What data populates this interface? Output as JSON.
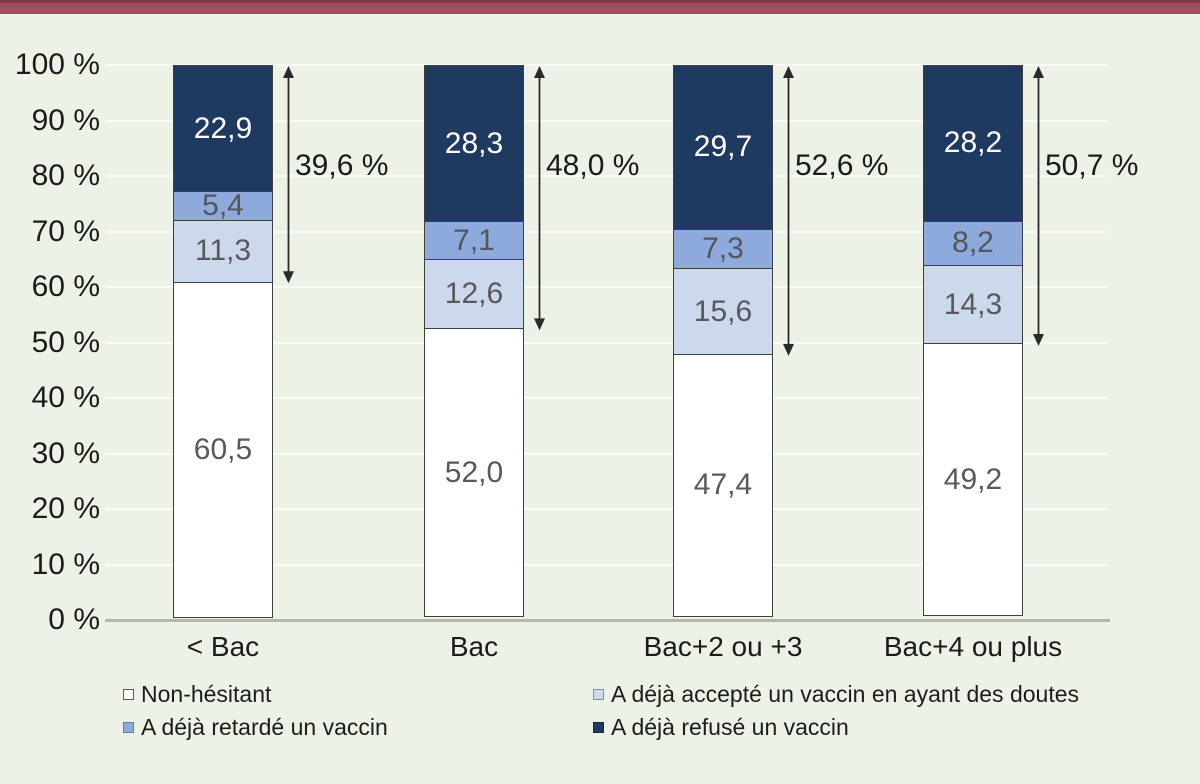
{
  "page": {
    "background_color": "#edf2e6",
    "accent_bar_color": "#9d4f5e",
    "accent_bar_edge_color": "#7e3a48"
  },
  "chart_data": {
    "type": "bar",
    "subtype": "stacked-percentage-column",
    "title": "",
    "xlabel": "",
    "ylabel": "",
    "ylim": [
      0,
      100
    ],
    "grid": true,
    "legend_position": "bottom",
    "categories": [
      "< Bac",
      "Bac",
      "Bac+2 ou +3",
      "Bac+4 ou plus"
    ],
    "y_ticks": [
      "0 %",
      "10 %",
      "20 %",
      "30 %",
      "40 %",
      "50 %",
      "60 %",
      "70 %",
      "80 %",
      "90 %",
      "100 %"
    ],
    "series": [
      {
        "name": "Non-hésitant",
        "color": "#ffffff",
        "label_color": "#595959",
        "values": [
          60.5,
          52.0,
          47.4,
          49.2
        ],
        "labels": [
          "60,5",
          "52,0",
          "47,4",
          "49,2"
        ]
      },
      {
        "name": "A déjà accepté un vaccin en ayant des doutes",
        "color": "#ccd8ec",
        "label_color": "#595959",
        "values": [
          11.3,
          12.6,
          15.6,
          14.3
        ],
        "labels": [
          "11,3",
          "12,6",
          "15,6",
          "14,3"
        ]
      },
      {
        "name": "A déjà retardé un vaccin",
        "color": "#8ea9db",
        "label_color": "#53575c",
        "values": [
          5.4,
          7.1,
          7.3,
          8.2
        ],
        "labels": [
          "5,4",
          "7,1",
          "7,3",
          "8,2"
        ]
      },
      {
        "name": "A déjà refusé un vaccin",
        "color": "#1f3a60",
        "label_color": "#ffffff",
        "values": [
          22.9,
          28.3,
          29.7,
          28.2
        ],
        "labels": [
          "22,9",
          "28,3",
          "29,7",
          "28,2"
        ]
      }
    ],
    "annotations": [
      {
        "label": "39,6 %",
        "total": 39.6
      },
      {
        "label": "48,0 %",
        "total": 48.0
      },
      {
        "label": "52,6 %",
        "total": 52.6
      },
      {
        "label": "50,7 %",
        "total": 50.7
      }
    ],
    "legend": [
      {
        "label": "Non-hésitant",
        "color": "#ffffff",
        "border": "#595959"
      },
      {
        "label": "A déjà accepté un vaccin en ayant des doutes",
        "color": "#ccd8ec",
        "border": "#7c8ea9"
      },
      {
        "label": "A déjà retardé un vaccin",
        "color": "#8ea9db",
        "border": "#5d7cb4"
      },
      {
        "label": "A déjà refusé un vaccin",
        "color": "#1f3a60",
        "border": "#15263f"
      }
    ]
  }
}
